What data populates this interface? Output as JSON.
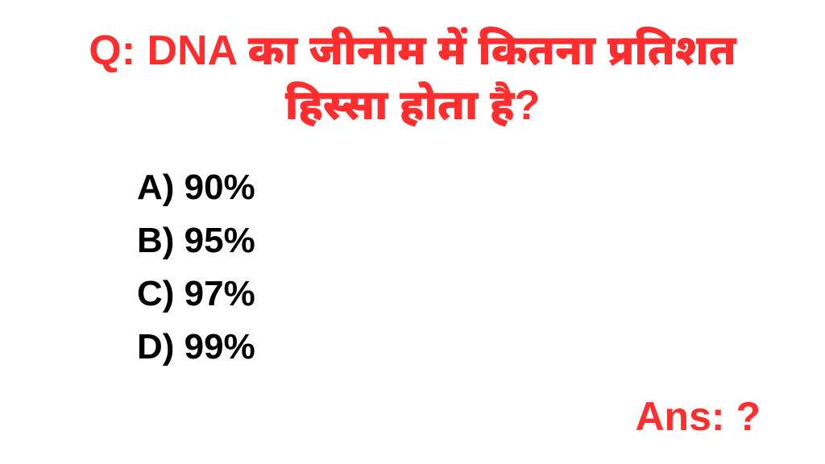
{
  "question": {
    "prefix": "Q:",
    "text": "DNA का जीनोम में कितना प्रतिशत हिस्सा होता है?",
    "color": "#ff2d2d",
    "fontsize": 52
  },
  "options": [
    {
      "label": "A)",
      "value": "90%"
    },
    {
      "label": "B)",
      "value": "95%"
    },
    {
      "label": "C)",
      "value": "97%"
    },
    {
      "label": "D)",
      "value": "99%"
    }
  ],
  "options_style": {
    "color": "#000000",
    "fontsize": 44
  },
  "answer": {
    "label": "Ans:",
    "value": "?",
    "color": "#ff2d2d",
    "fontsize": 50
  },
  "background_color": "#ffffff"
}
